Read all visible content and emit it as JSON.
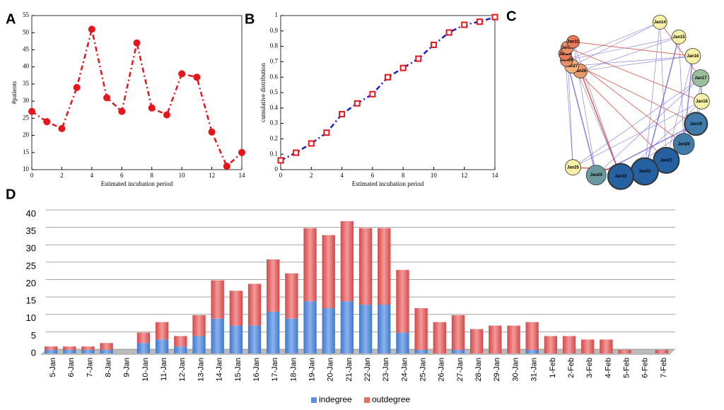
{
  "chart_data": [
    {
      "type": "line",
      "panel": "A",
      "xlabel": "Estimated incubation period",
      "ylabel": "#patients",
      "x": [
        0,
        1,
        2,
        3,
        4,
        5,
        6,
        7,
        8,
        9,
        10,
        11,
        12,
        13,
        14
      ],
      "values": [
        27,
        24,
        22,
        34,
        51,
        31,
        27,
        47,
        28,
        26,
        38,
        37,
        21,
        11,
        15
      ],
      "color": "#e8141b",
      "marker": "circle",
      "marker_color": "#e8141b",
      "xlim": [
        0,
        14
      ],
      "ylim": [
        10,
        55
      ],
      "xticks": [
        0,
        2,
        4,
        6,
        8,
        10,
        12,
        14
      ],
      "yticks": [
        10,
        15,
        20,
        25,
        30,
        35,
        40,
        45,
        50,
        55
      ]
    },
    {
      "type": "line",
      "panel": "B",
      "xlabel": "Estimated incubation period",
      "ylabel": "cumulative distribution",
      "x": [
        0,
        1,
        2,
        3,
        4,
        5,
        6,
        7,
        8,
        9,
        10,
        11,
        12,
        13,
        14
      ],
      "values": [
        0.06,
        0.11,
        0.17,
        0.24,
        0.36,
        0.43,
        0.49,
        0.6,
        0.66,
        0.72,
        0.81,
        0.89,
        0.94,
        0.96,
        0.99
      ],
      "color": "#1a1adb",
      "marker": "square",
      "marker_color": "#e8141b",
      "xlim": [
        0,
        14
      ],
      "ylim": [
        0,
        1
      ],
      "xticks": [
        0,
        2,
        4,
        6,
        8,
        10,
        12,
        14
      ],
      "yticks": [
        0,
        0.1,
        0.2,
        0.3,
        0.4,
        0.5,
        0.6,
        0.7,
        0.8,
        0.9,
        1
      ]
    },
    {
      "type": "network",
      "panel": "C",
      "nodes": [
        "Jan14",
        "Jan15",
        "Jan16",
        "Jan17",
        "Jan18",
        "Jan19",
        "Jan20",
        "Jan21",
        "Jan22",
        "Jan23",
        "Jan24",
        "Jan25",
        "Jan26",
        "Jan27",
        "Jan28",
        "Jan29",
        "Jan30",
        "Jan31"
      ]
    },
    {
      "type": "bar",
      "panel": "D",
      "stacked": true,
      "legend": "bottom",
      "categories": [
        "5-Jan",
        "6-Jan",
        "7-Jan",
        "8-Jan",
        "9-Jan",
        "10-Jan",
        "11-Jan",
        "12-Jan",
        "13-Jan",
        "14-Jan",
        "15-Jan",
        "16-Jan",
        "17-Jan",
        "18-Jan",
        "19-Jan",
        "20-Jan",
        "21-Jan",
        "22-Jan",
        "23-Jan",
        "24-Jan",
        "25-Jan",
        "26-Jan",
        "27-Jan",
        "28-Jan",
        "29-Jan",
        "30-Jan",
        "31-Jan",
        "1-Feb",
        "2-Feb",
        "3-Feb",
        "4-Feb",
        "5-Feb",
        "6-Feb",
        "7-Feb"
      ],
      "series": [
        {
          "name": "indegree",
          "color": "#5b8fd9",
          "values": [
            1,
            1,
            1,
            1,
            0,
            3,
            4,
            2,
            5,
            10,
            8,
            8,
            12,
            10,
            15,
            13,
            15,
            14,
            14,
            6,
            1,
            0,
            1,
            0,
            0,
            0,
            1,
            0,
            0,
            0,
            0,
            0,
            0,
            0
          ]
        },
        {
          "name": "outdegree",
          "color": "#e46c6c",
          "values": [
            1,
            1,
            1,
            2,
            0,
            3,
            5,
            3,
            6,
            11,
            10,
            12,
            15,
            13,
            21,
            21,
            23,
            22,
            22,
            18,
            12,
            9,
            10,
            7,
            8,
            8,
            8,
            5,
            5,
            4,
            4,
            1,
            0,
            1
          ]
        }
      ],
      "ylim": [
        0,
        40
      ],
      "yticks": [
        0,
        5,
        10,
        15,
        20,
        25,
        30,
        35,
        40
      ],
      "grid": true
    }
  ]
}
